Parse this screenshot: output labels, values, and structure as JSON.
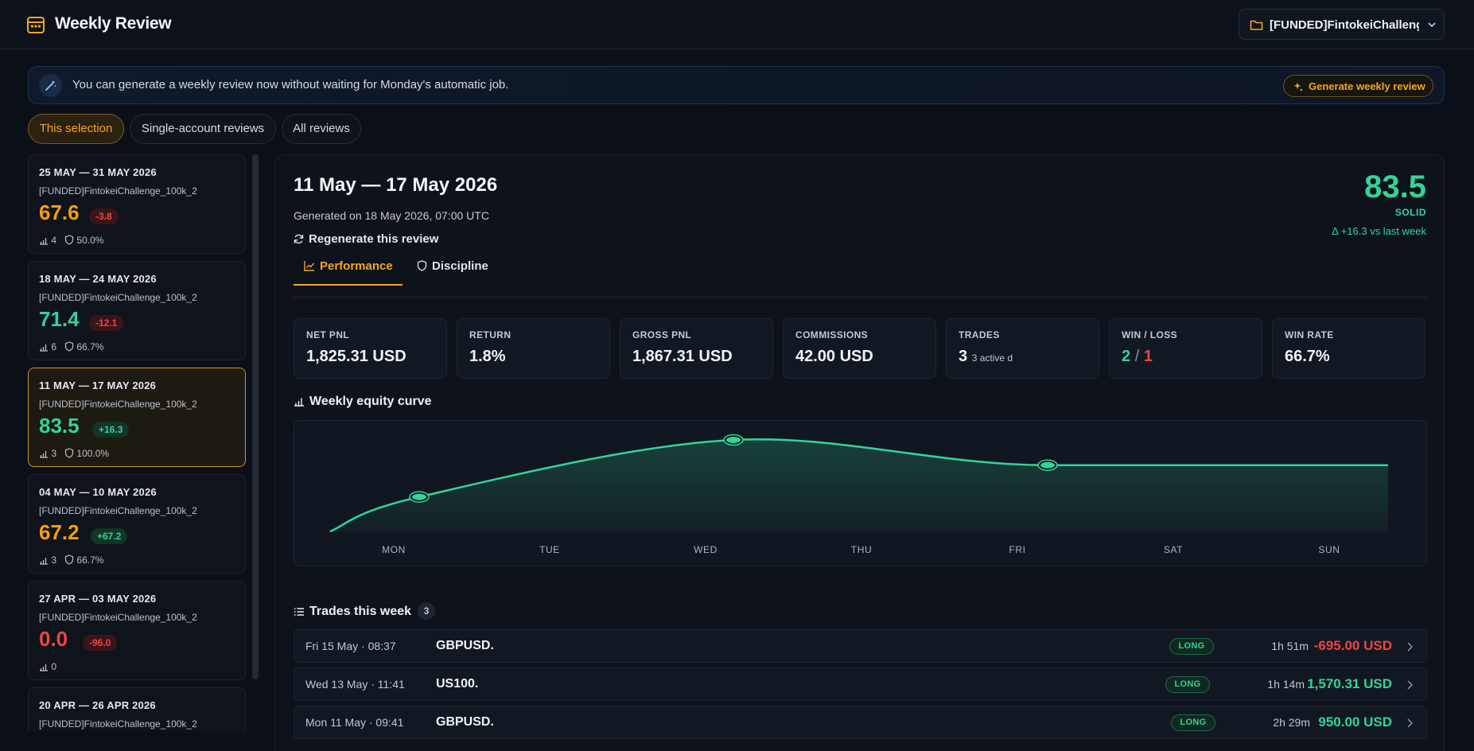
{
  "header": {
    "title": "Weekly Review",
    "account_label": "[FUNDED]FintokeiChalleng..."
  },
  "banner": {
    "text": "You can generate a weekly review now without waiting for Monday's automatic job.",
    "button_label": "Generate weekly review"
  },
  "scope_tabs": [
    "This selection",
    "Single-account reviews",
    "All reviews"
  ],
  "weeks": [
    {
      "range": "25 MAY — 31 MAY 2026",
      "account": "[FUNDED]FintokeiChallenge_100k_2",
      "score": "67.6",
      "delta": "-3.8",
      "trades": "4",
      "discipline": "50.0%"
    },
    {
      "range": "18 MAY — 24 MAY 2026",
      "account": "[FUNDED]FintokeiChallenge_100k_2",
      "score": "71.4",
      "delta": "-12.1",
      "trades": "6",
      "discipline": "66.7%"
    },
    {
      "range": "11 MAY — 17 MAY 2026",
      "account": "[FUNDED]FintokeiChallenge_100k_2",
      "score": "83.5",
      "delta": "+16.3",
      "trades": "3",
      "discipline": "100.0%"
    },
    {
      "range": "04 MAY — 10 MAY 2026",
      "account": "[FUNDED]FintokeiChallenge_100k_2",
      "score": "67.2",
      "delta": "+67.2",
      "trades": "3",
      "discipline": "66.7%"
    },
    {
      "range": "27 APR — 03 MAY 2026",
      "account": "[FUNDED]FintokeiChallenge_100k_2",
      "score": "0.0",
      "delta": "-96.0",
      "trades": "0",
      "discipline": ""
    },
    {
      "range": "20 APR — 26 APR 2026",
      "account": "[FUNDED]FintokeiChallenge_100k_2",
      "score": "",
      "delta": "",
      "trades": "",
      "discipline": ""
    }
  ],
  "review": {
    "title": "11 May — 17 May 2026",
    "generated": "Generated on 18 May 2026, 07:00 UTC",
    "regenerate_label": "Regenerate this review",
    "score": "83.5",
    "level": "SOLID",
    "delta_text": "Δ +16.3 vs last week",
    "tabs": [
      "Performance",
      "Discipline"
    ]
  },
  "stats": [
    {
      "label": "NET PNL",
      "value": "1,825.31 USD"
    },
    {
      "label": "RETURN",
      "value": "1.8%"
    },
    {
      "label": "GROSS PNL",
      "value": "1,867.31 USD"
    },
    {
      "label": "COMMISSIONS",
      "value": "42.00 USD"
    },
    {
      "label": "TRADES",
      "value": "3",
      "sub": "3 active d"
    },
    {
      "label": "WIN / LOSS",
      "wins": "2",
      "sep": "/",
      "losses": "1"
    },
    {
      "label": "WIN RATE",
      "value": "66.7%"
    }
  ],
  "equity_title": "Weekly equity curve",
  "chart_data": {
    "type": "line",
    "title": "Weekly equity curve",
    "categories": [
      "MON",
      "TUE",
      "WED",
      "THU",
      "FRI",
      "SAT",
      "SUN"
    ],
    "markers": [
      {
        "x": "MON",
        "y": 950.0
      },
      {
        "x": "WED",
        "y": 2520.31
      },
      {
        "x": "FRI",
        "y": 1825.31
      }
    ],
    "curve_end": {
      "x": "SUN",
      "y": 1825.31
    },
    "curve_start": {
      "x": "MON",
      "y": 0
    },
    "series_color": "#34d399",
    "grid": false
  },
  "trades_title": "Trades this week",
  "trades_count": "3",
  "trades": [
    {
      "when": "Fri 15 May · 08:37",
      "symbol": "GBPUSD.",
      "side": "LONG",
      "duration": "1h 51m",
      "pnl": "-695.00 USD",
      "positive": false
    },
    {
      "when": "Wed 13 May · 11:41",
      "symbol": "US100.",
      "side": "LONG",
      "duration": "1h 14m",
      "pnl": "1,570.31 USD",
      "positive": true
    },
    {
      "when": "Mon 11 May · 09:41",
      "symbol": "GBPUSD.",
      "side": "LONG",
      "duration": "2h 29m",
      "pnl": "950.00 USD",
      "positive": true
    }
  ],
  "colors": {
    "accent": "#f5a524",
    "positive": "#34d399",
    "negative": "#ef4444",
    "background": "#0b1018"
  }
}
